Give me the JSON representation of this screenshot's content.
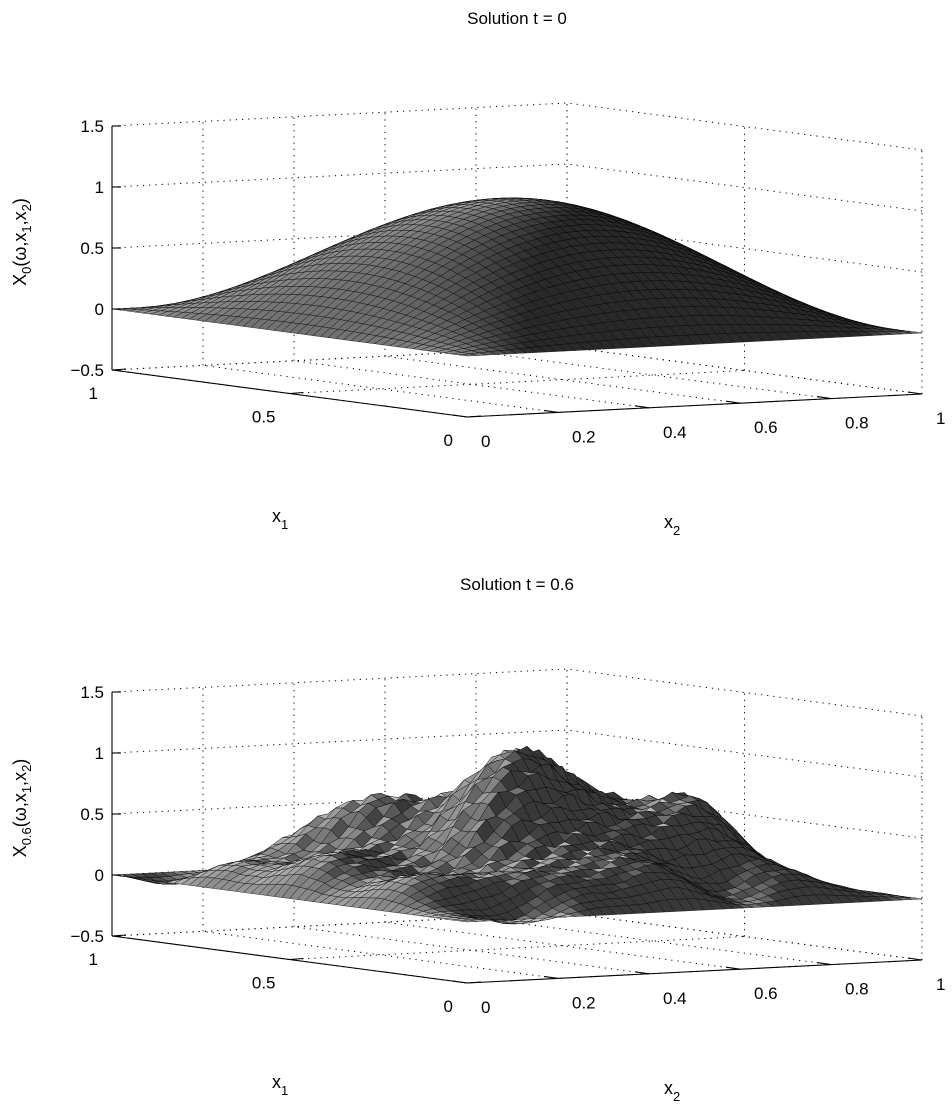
{
  "chart_data": [
    {
      "type": "surface",
      "title": "Solution t = 0",
      "zlabel": {
        "base": "X",
        "sub": "0",
        "args": "(ω,x",
        "a1": "1",
        "sep": ",x",
        "a2": "2",
        "close": ")"
      },
      "x1label": {
        "base": "x",
        "sub": "1"
      },
      "x2label": {
        "base": "x",
        "sub": "2"
      },
      "x1_ticks": [
        "0",
        "0.5",
        "1"
      ],
      "x1_tick_values": [
        0,
        0.5,
        1
      ],
      "x2_ticks": [
        "0",
        "0.2",
        "0.4",
        "0.6",
        "0.8",
        "1"
      ],
      "x2_tick_values": [
        0,
        0.2,
        0.4,
        0.6,
        0.8,
        1
      ],
      "z_ticks": [
        "−0.5",
        "0",
        "0.5",
        "1",
        "1.5"
      ],
      "z_tick_values": [
        -0.5,
        0,
        0.5,
        1,
        1.5
      ],
      "x1_range": [
        0,
        1
      ],
      "x2_range": [
        0,
        1
      ],
      "z_range": [
        -0.5,
        1.5
      ],
      "grid": true,
      "surface": "X0 = sin(pi*x1)*sin(pi*x2)",
      "surface_peak": 1,
      "shading": "gray"
    },
    {
      "type": "surface",
      "title": "Solution t = 0.6",
      "zlabel": {
        "base": "X",
        "sub": "0.6",
        "args": "(ω,x",
        "a1": "1",
        "sep": ",x",
        "a2": "2",
        "close": ")"
      },
      "x1label": {
        "base": "x",
        "sub": "1"
      },
      "x2label": {
        "base": "x",
        "sub": "2"
      },
      "x1_ticks": [
        "0",
        "0.5",
        "1"
      ],
      "x1_tick_values": [
        0,
        0.5,
        1
      ],
      "x2_ticks": [
        "0",
        "0.2",
        "0.4",
        "0.6",
        "0.8",
        "1"
      ],
      "x2_tick_values": [
        0,
        0.2,
        0.4,
        0.6,
        0.8,
        1
      ],
      "z_ticks": [
        "−0.5",
        "0",
        "0.5",
        "1",
        "1.5"
      ],
      "z_tick_values": [
        -0.5,
        0,
        0.5,
        1,
        1.5
      ],
      "x1_range": [
        0,
        1
      ],
      "x2_range": [
        0,
        1
      ],
      "z_range": [
        -0.5,
        1.5
      ],
      "grid": true,
      "surface": "random field with peaks about 1.15 near center",
      "surface_peak": 1.15,
      "shading": "gray"
    }
  ]
}
